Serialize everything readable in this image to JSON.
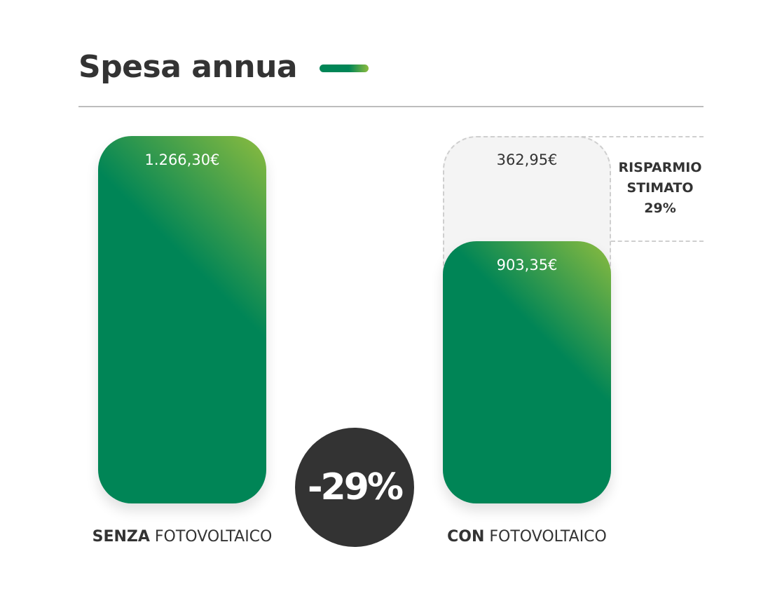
{
  "title": "Spesa annua",
  "colors": {
    "green_dark": "#008556",
    "green_light": "#8cbc3f",
    "savings_fill": "#f4f4f4",
    "badge_bg": "#333333",
    "text": "#333333"
  },
  "chart_data": {
    "type": "bar",
    "categories": [
      "SENZA FOTOVOLTAICO",
      "CON FOTOVOLTAICO"
    ],
    "category_labels": [
      {
        "bold": "SENZA",
        "regular": " FOTOVOLTAICO"
      },
      {
        "bold": "CON",
        "regular": " FOTOVOLTAICO"
      }
    ],
    "values": [
      1266.3,
      903.35
    ],
    "value_labels": [
      "1.266,30€",
      "903,35€"
    ],
    "savings_value": 362.95,
    "savings_label": "362,95€",
    "savings_note": [
      "RISPARMIO",
      "STIMATO",
      "29%"
    ],
    "badge": "-29%",
    "ylim": [
      0,
      1266.3
    ]
  }
}
